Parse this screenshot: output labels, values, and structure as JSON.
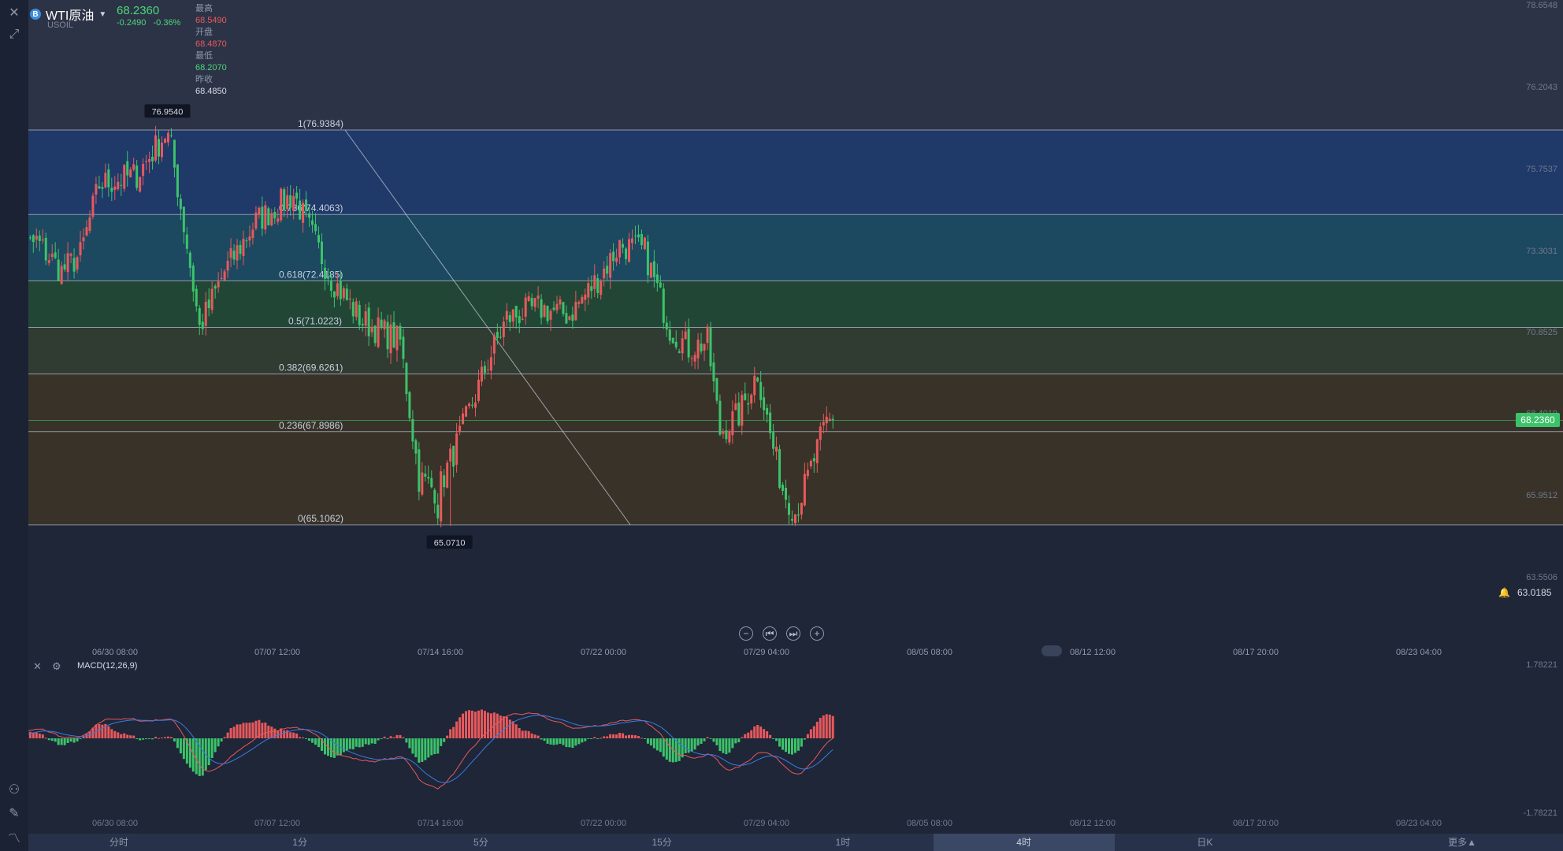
{
  "symbol": {
    "name": "WTI原油",
    "code": "USOIL",
    "logo_letter": "B",
    "last": "68.2360",
    "change": "-0.2490",
    "change_pct": "-0.36%"
  },
  "stats": {
    "high_label": "最高",
    "high": "68.5490",
    "open_label": "开盘",
    "open": "68.4870",
    "low_label": "最低",
    "low": "68.2070",
    "prev_label": "昨收",
    "prev": "68.4850"
  },
  "colors": {
    "up": "#e8595c",
    "down": "#3cc36a",
    "bg": "#1e2638"
  },
  "price_axis": {
    "ticks": [
      {
        "label": "78.6548",
        "value": 78.6548
      },
      {
        "label": "76.2043",
        "value": 76.2043
      },
      {
        "label": "75.7537",
        "value": 75.7537
      },
      {
        "label": "73.3031",
        "value": 73.3031
      },
      {
        "label": "70.8525",
        "value": 70.8525
      },
      {
        "label": "68.4019",
        "value": 68.4019
      },
      {
        "label": "65.9512",
        "value": 65.9512
      },
      {
        "label": "63.5506",
        "value": 63.5506
      }
    ],
    "current_badge": "68.2360",
    "alert_value": "63.0185"
  },
  "time_axis": {
    "labels": [
      "06/30 08:00",
      "07/07 12:00",
      "07/14 16:00",
      "07/22 00:00",
      "07/29 04:00",
      "08/05 08:00",
      "08/12 12:00",
      "08/17 20:00",
      "08/23 04:00"
    ],
    "macd_labels": [
      "06/30 08:00",
      "07/07 12:00",
      "07/14 16:00",
      "07/22 00:00",
      "07/29 04:00",
      "08/05 08:00",
      "08/12 12:00",
      "08/17 20:00",
      "08/23 04:00"
    ]
  },
  "annotations": {
    "high_label": "76.9540",
    "low_label": "65.0710"
  },
  "macd": {
    "title": "MACD(12,26,9)",
    "top": "1.78221",
    "bottom": "-1.78221"
  },
  "tabs": [
    "分时",
    "1分",
    "5分",
    "15分",
    "1时",
    "4时",
    "日K",
    "更多▲"
  ],
  "active_tab": "4时",
  "chart_data": {
    "type": "candlestick",
    "title": "WTI原油",
    "timeframe": "4时",
    "ylim": [
      63.0,
      79.0
    ],
    "fibonacci": [
      {
        "ratio": "1",
        "value": 76.9384,
        "label": "1(76.9384)",
        "color": "#2c2c68"
      },
      {
        "ratio": "0.786",
        "value": 74.4063,
        "label": "0.786(74.4063)",
        "color": "#203a6b"
      },
      {
        "ratio": "0.618",
        "value": 72.4185,
        "label": "0.618(72.4185)",
        "color": "#1c4a62"
      },
      {
        "ratio": "0.5",
        "value": 71.0223,
        "label": "0.5(71.0223)",
        "color": "#234836"
      },
      {
        "ratio": "0.382",
        "value": 69.6261,
        "label": "0.382(69.6261)",
        "color": "#313c31"
      },
      {
        "ratio": "0.236",
        "value": 67.8986,
        "label": "0.236(67.8986)",
        "color": "#3a3328"
      },
      {
        "ratio": "0",
        "value": 65.1062,
        "label": "0(65.1062)",
        "color": "#3a3328"
      }
    ],
    "ohlc_key_points": [
      {
        "i": 0,
        "c": 73.0
      },
      {
        "i": 10,
        "c": 73.6
      },
      {
        "i": 18,
        "c": 72.7
      },
      {
        "i": 24,
        "c": 73.2
      },
      {
        "i": 30,
        "c": 75.3
      },
      {
        "i": 42,
        "c": 75.6
      },
      {
        "i": 52,
        "c": 76.95
      },
      {
        "i": 58,
        "c": 73.5
      },
      {
        "i": 62,
        "c": 71.0
      },
      {
        "i": 70,
        "c": 72.7
      },
      {
        "i": 80,
        "c": 74.2
      },
      {
        "i": 92,
        "c": 75.0
      },
      {
        "i": 104,
        "c": 72.5
      },
      {
        "i": 114,
        "c": 71.2
      },
      {
        "i": 126,
        "c": 70.6
      },
      {
        "i": 132,
        "c": 66.5
      },
      {
        "i": 138,
        "c": 66.1
      },
      {
        "i": 144,
        "c": 67.5
      },
      {
        "i": 154,
        "c": 70.0
      },
      {
        "i": 160,
        "c": 71.3
      },
      {
        "i": 170,
        "c": 71.6
      },
      {
        "i": 180,
        "c": 71.4
      },
      {
        "i": 190,
        "c": 72.6
      },
      {
        "i": 196,
        "c": 73.5
      },
      {
        "i": 204,
        "c": 73.3
      },
      {
        "i": 212,
        "c": 71.0
      },
      {
        "i": 218,
        "c": 70.4
      },
      {
        "i": 224,
        "c": 70.6
      },
      {
        "i": 228,
        "c": 67.9
      },
      {
        "i": 234,
        "c": 68.4
      },
      {
        "i": 240,
        "c": 69.7
      },
      {
        "i": 244,
        "c": 67.8
      },
      {
        "i": 248,
        "c": 66.2
      },
      {
        "i": 252,
        "c": 65.5
      },
      {
        "i": 256,
        "c": 66.5
      },
      {
        "i": 262,
        "c": 68.2
      },
      {
        "i": 264,
        "c": 68.24
      }
    ]
  }
}
